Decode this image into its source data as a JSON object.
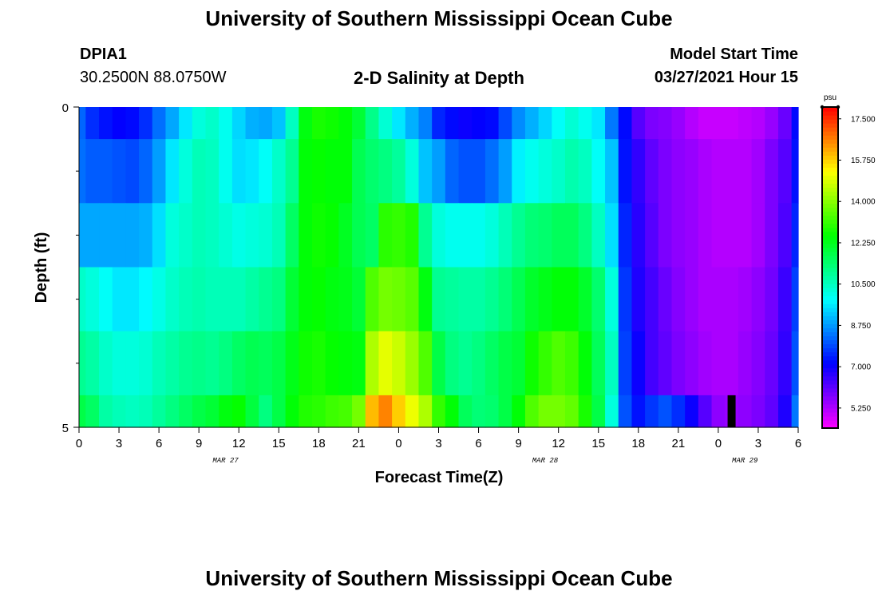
{
  "header": {
    "title_top": "University of Southern Mississippi Ocean Cube",
    "title_bottom": "University of Southern Mississippi Ocean Cube",
    "station_id": "DPIA1",
    "station_coords": "30.2500N  88.0750W",
    "plot_title": "2-D Salinity at Depth",
    "model_label": "Model Start Time",
    "model_time": "03/27/2021 Hour 15"
  },
  "chart_data": {
    "type": "heatmap",
    "title": "2-D Salinity at Depth",
    "xlabel": "Forecast Time(Z)",
    "ylabel": "Depth (ft)",
    "x_tick_labels": [
      "0",
      "3",
      "6",
      "9",
      "12",
      "15",
      "18",
      "21",
      "0",
      "3",
      "6",
      "9",
      "12",
      "15",
      "18",
      "21",
      "0",
      "3",
      "6"
    ],
    "date_labels": [
      {
        "label": "MAR 27",
        "at_hour": 11
      },
      {
        "label": "MAR 28",
        "at_hour": 35
      },
      {
        "label": "MAR 29",
        "at_hour": 50
      }
    ],
    "xlim_hours": [
      0,
      54
    ],
    "y_tick_labels": [
      "0",
      "5"
    ],
    "ylim_ft": [
      0,
      5
    ],
    "depth_levels_ft": [
      0.5,
      1.5,
      2.5,
      3.5,
      4.5,
      5.0
    ],
    "hours": [
      0,
      1,
      2,
      3,
      4,
      5,
      6,
      7,
      8,
      9,
      10,
      11,
      12,
      13,
      14,
      15,
      16,
      17,
      18,
      19,
      20,
      21,
      22,
      23,
      24,
      25,
      26,
      27,
      28,
      29,
      30,
      31,
      32,
      33,
      34,
      35,
      36,
      37,
      38,
      39,
      40,
      41,
      42,
      43,
      44,
      45,
      46,
      47,
      48,
      49,
      50,
      51,
      52,
      53,
      54
    ],
    "salinity_psu": [
      [
        8.2,
        7.6,
        7.3,
        7.1,
        7.2,
        7.6,
        8.3,
        8.9,
        9.6,
        10.2,
        10.4,
        10.0,
        9.4,
        9.0,
        8.9,
        9.2,
        10.5,
        12.4,
        12.8,
        12.7,
        12.5,
        12.0,
        11.1,
        10.3,
        9.6,
        9.0,
        8.5,
        7.5,
        7.2,
        7.0,
        7.1,
        7.2,
        7.9,
        8.6,
        9.0,
        9.4,
        9.9,
        10.3,
        10.0,
        9.6,
        8.4,
        7.2,
        6.2,
        5.8,
        5.7,
        5.5,
        5.2,
        5.0,
        5.0,
        5.0,
        5.1,
        5.2,
        5.5,
        6.0,
        7.2
      ],
      [
        8.3,
        8.1,
        8.1,
        8.0,
        7.9,
        8.2,
        8.8,
        9.6,
        10.2,
        10.6,
        10.5,
        10.0,
        9.5,
        9.6,
        9.9,
        10.4,
        11.0,
        12.5,
        12.6,
        12.5,
        12.5,
        11.7,
        11.4,
        11.2,
        10.9,
        10.2,
        9.2,
        8.8,
        8.2,
        8.0,
        8.0,
        8.3,
        8.8,
        9.7,
        10.0,
        10.2,
        10.4,
        10.7,
        10.5,
        9.9,
        9.2,
        7.3,
        6.6,
        6.1,
        5.8,
        5.6,
        5.5,
        5.3,
        5.2,
        5.2,
        5.2,
        5.4,
        5.8,
        6.2,
        7.3
      ],
      [
        8.9,
        8.9,
        8.9,
        8.9,
        8.9,
        9.0,
        9.5,
        10.2,
        10.4,
        10.6,
        10.5,
        10.3,
        10.1,
        10.2,
        10.3,
        10.6,
        11.5,
        12.5,
        12.7,
        12.6,
        12.2,
        11.7,
        11.5,
        13.0,
        13.1,
        12.9,
        11.0,
        10.2,
        10.0,
        10.0,
        10.0,
        10.2,
        10.6,
        11.0,
        11.3,
        11.4,
        11.6,
        11.6,
        11.2,
        10.5,
        9.5,
        7.5,
        6.7,
        6.2,
        5.8,
        5.6,
        5.5,
        5.3,
        5.2,
        5.2,
        5.2,
        5.4,
        5.8,
        6.3,
        7.5
      ],
      [
        10.4,
        10.2,
        9.9,
        9.6,
        9.6,
        9.8,
        10.1,
        10.4,
        10.6,
        10.7,
        10.6,
        10.6,
        10.6,
        10.8,
        11.0,
        11.2,
        12.0,
        12.5,
        12.6,
        12.4,
        12.3,
        12.0,
        13.4,
        13.8,
        13.7,
        13.5,
        12.4,
        11.0,
        10.9,
        10.8,
        10.8,
        11.0,
        11.3,
        11.7,
        12.1,
        12.3,
        12.5,
        12.5,
        12.1,
        11.4,
        10.2,
        7.7,
        6.8,
        6.4,
        6.0,
        5.7,
        5.5,
        5.3,
        5.3,
        5.3,
        5.4,
        5.6,
        5.9,
        6.5,
        7.8
      ],
      [
        11.0,
        10.8,
        10.4,
        10.2,
        10.2,
        10.3,
        10.6,
        10.8,
        11.0,
        11.1,
        11.0,
        11.2,
        11.5,
        11.7,
        11.6,
        11.8,
        12.3,
        12.7,
        12.8,
        12.6,
        12.5,
        12.4,
        14.4,
        15.0,
        14.7,
        14.2,
        13.4,
        11.8,
        11.2,
        11.0,
        11.2,
        11.5,
        11.8,
        12.0,
        12.7,
        13.1,
        13.4,
        13.2,
        12.5,
        11.6,
        10.5,
        7.8,
        7.0,
        6.4,
        6.1,
        5.8,
        5.6,
        5.4,
        5.3,
        5.3,
        5.5,
        5.7,
        6.0,
        6.6,
        8.0
      ],
      [
        11.8,
        11.5,
        10.8,
        10.6,
        10.5,
        10.6,
        10.9,
        11.2,
        11.5,
        11.8,
        12.0,
        12.4,
        12.6,
        11.9,
        11.2,
        11.8,
        12.5,
        12.9,
        13.0,
        13.2,
        13.3,
        13.8,
        16.0,
        16.6,
        15.8,
        15.1,
        14.4,
        13.1,
        12.5,
        11.6,
        11.3,
        11.4,
        11.8,
        12.5,
        13.4,
        13.8,
        13.8,
        13.6,
        12.8,
        11.8,
        10.2,
        8.0,
        7.3,
        7.7,
        8.0,
        7.6,
        7.0,
        6.2,
        5.6,
        5.5,
        5.6,
        5.8,
        6.1,
        6.8,
        8.4
      ]
    ],
    "data_gap": {
      "hour": 49,
      "depth_ft": [
        4.5,
        5.0
      ]
    },
    "colorbar": {
      "unit": "psu",
      "range": [
        4.4,
        18.0
      ],
      "tick_labels": [
        "17.500",
        "15.750",
        "14.000",
        "12.250",
        "10.500",
        "8.750",
        "7.000",
        "5.250"
      ],
      "tick_values": [
        17.5,
        15.75,
        14.0,
        12.25,
        10.5,
        8.75,
        7.0,
        5.25
      ]
    }
  }
}
